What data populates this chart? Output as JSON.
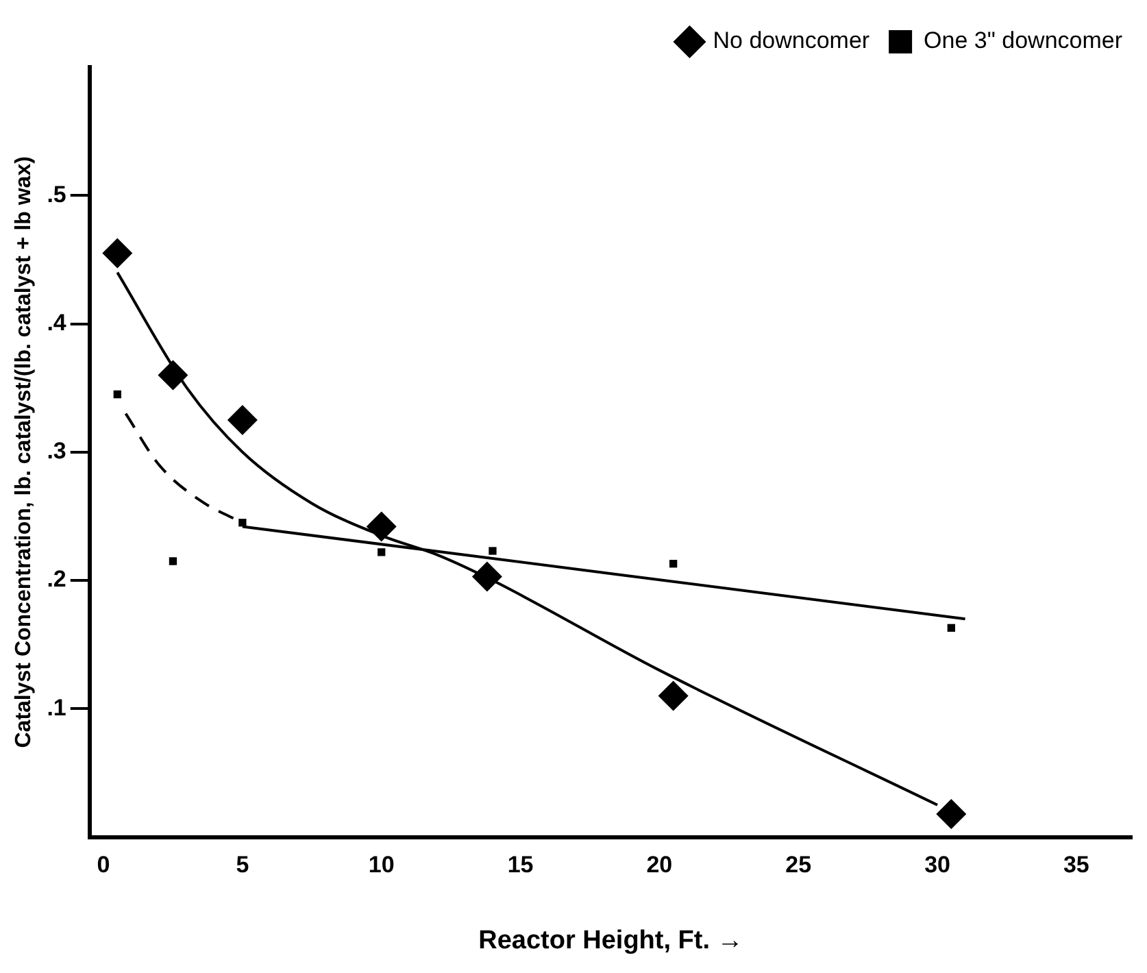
{
  "chart_data": {
    "type": "scatter",
    "xlabel": "Reactor Height, Ft. →",
    "ylabel": "Catalyst Concentration, lb. catalyst/(lb. catalyst + lb wax)",
    "xlim": [
      -0.5,
      37
    ],
    "ylim": [
      0,
      0.6
    ],
    "xticks": [
      0,
      5,
      10,
      15,
      20,
      25,
      30,
      35
    ],
    "yticks": [
      {
        "value": 0.1,
        "label": ".1"
      },
      {
        "value": 0.2,
        "label": ".2"
      },
      {
        "value": 0.3,
        "label": ".3"
      },
      {
        "value": 0.4,
        "label": ".4"
      },
      {
        "value": 0.5,
        "label": ".5"
      }
    ],
    "grid": false,
    "legend": "top right",
    "series": [
      {
        "name": "No downcomer",
        "color": "#000000",
        "marker": "diamond",
        "x": [
          0.5,
          2.5,
          5,
          10,
          13.8,
          20.5,
          30.5
        ],
        "values": [
          0.455,
          0.36,
          0.325,
          0.242,
          0.203,
          0.11,
          0.018
        ]
      },
      {
        "name": "One 3\" downcomer",
        "color": "#000000",
        "marker": "square",
        "x": [
          0.5,
          2.5,
          5,
          10,
          14,
          20.5,
          30.5
        ],
        "values": [
          0.345,
          0.215,
          0.245,
          0.222,
          0.223,
          0.213,
          0.163
        ]
      },
      {
        "type": "line",
        "color": "#000000",
        "marker": "none",
        "line_style": "solid",
        "x": [
          0.5,
          3,
          5,
          7.5,
          10,
          12,
          14,
          20,
          30
        ],
        "values": [
          0.44,
          0.35,
          0.3,
          0.26,
          0.235,
          0.22,
          0.2,
          0.13,
          0.025
        ]
      },
      {
        "type": "line",
        "color": "#000000",
        "marker": "none",
        "line_style": "dashed",
        "x": [
          0.8,
          2,
          3.5,
          5
        ],
        "values": [
          0.33,
          0.29,
          0.262,
          0.245
        ]
      },
      {
        "type": "line",
        "color": "#000000",
        "marker": "none",
        "line_style": "solid",
        "x": [
          5,
          31
        ],
        "values": [
          0.242,
          0.17
        ]
      }
    ]
  }
}
